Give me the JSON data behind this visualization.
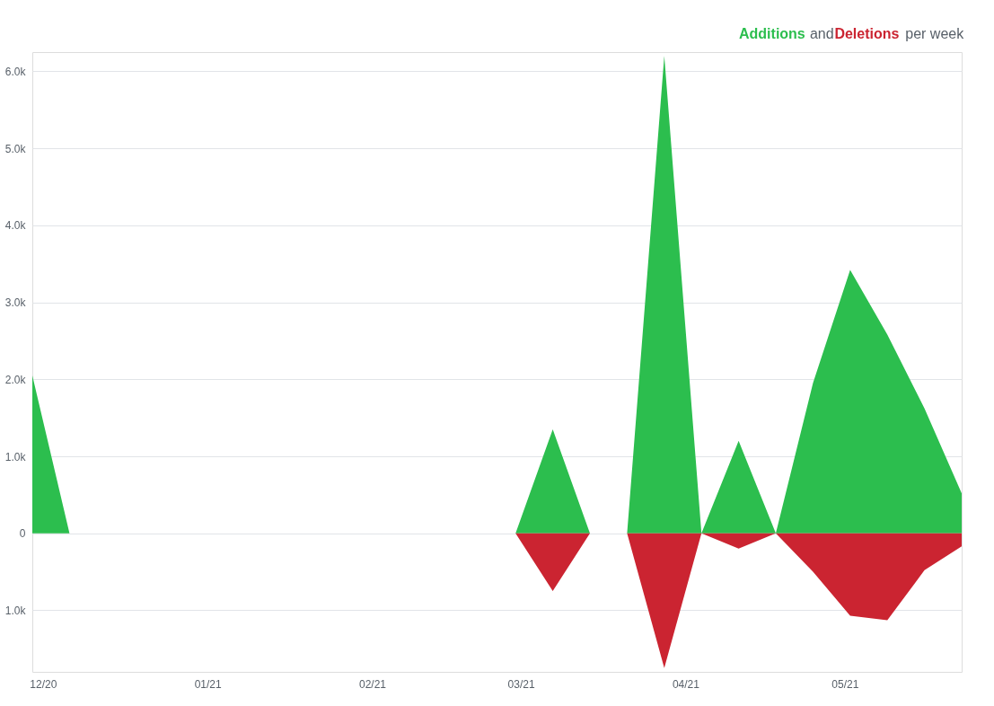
{
  "chart_data": {
    "type": "area",
    "x": [
      "2020-11-29",
      "2020-12-06",
      "2020-12-13",
      "2020-12-20",
      "2020-12-27",
      "2021-01-03",
      "2021-01-10",
      "2021-01-17",
      "2021-01-24",
      "2021-01-31",
      "2021-02-07",
      "2021-02-14",
      "2021-02-21",
      "2021-02-28",
      "2021-03-07",
      "2021-03-14",
      "2021-03-21",
      "2021-03-28",
      "2021-04-04",
      "2021-04-11",
      "2021-04-18",
      "2021-04-25",
      "2021-05-02",
      "2021-05-09",
      "2021-05-16",
      "2021-05-23"
    ],
    "series": [
      {
        "name": "Additions",
        "color": "#2cbe4e",
        "values": [
          2050,
          0,
          0,
          0,
          0,
          0,
          0,
          0,
          0,
          0,
          0,
          0,
          0,
          0,
          1350,
          0,
          0,
          6200,
          0,
          1200,
          0,
          1950,
          3420,
          2580,
          1620,
          520
        ]
      },
      {
        "name": "Deletions",
        "color": "#cb2431",
        "values": [
          0,
          0,
          0,
          0,
          0,
          0,
          0,
          0,
          0,
          0,
          0,
          0,
          0,
          0,
          -750,
          0,
          0,
          -1750,
          0,
          -200,
          0,
          -500,
          -1070,
          -1130,
          -480,
          -170
        ]
      }
    ],
    "annotations": [
      "and",
      "per week"
    ],
    "legend": "top right",
    "xlim": [
      "2020-11-29",
      "2021-05-23"
    ],
    "xticks": [
      {
        "value": "2020-12-01",
        "label": "12/20"
      },
      {
        "value": "2021-01-01",
        "label": "01/21"
      },
      {
        "value": "2021-02-01",
        "label": "02/21"
      },
      {
        "value": "2021-03-01",
        "label": "03/21"
      },
      {
        "value": "2021-04-01",
        "label": "04/21"
      },
      {
        "value": "2021-05-01",
        "label": "05/21"
      }
    ],
    "ylim": [
      -1800,
      6250
    ],
    "yticks": [
      {
        "value": -1000,
        "label": "1.0k"
      },
      0,
      {
        "value": 1000,
        "label": "1.0k"
      },
      {
        "value": 2000,
        "label": "2.0k"
      },
      {
        "value": 3000,
        "label": "3.0k"
      },
      {
        "value": 4000,
        "label": "4.0k"
      },
      {
        "value": 5000,
        "label": "5.0k"
      },
      {
        "value": 6000,
        "label": "6.0k"
      }
    ],
    "grid": "y"
  }
}
